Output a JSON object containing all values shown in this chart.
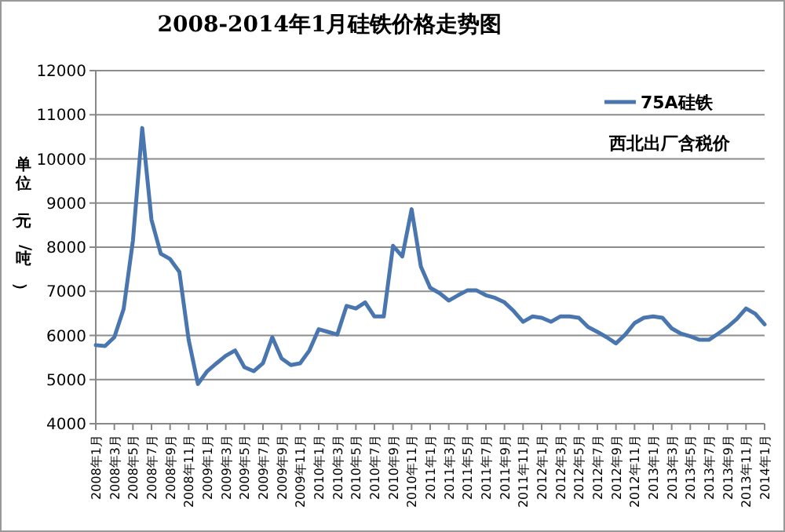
{
  "chart_data": {
    "type": "line",
    "title": "2008-2014年1月硅铁价格走势图",
    "ylabel": "单位（元/吨）",
    "annotations": [
      "西北出厂含税价"
    ],
    "categories": [
      "2008年1月",
      null,
      "2008年3月",
      null,
      "2008年5月",
      null,
      "2008年7月",
      null,
      "2008年9月",
      null,
      "2008年11月",
      null,
      "2009年1月",
      null,
      "2009年3月",
      null,
      "2009年5月",
      null,
      "2009年7月",
      null,
      "2009年9月",
      null,
      "2009年11月",
      null,
      "2010年1月",
      null,
      "2010年3月",
      null,
      "2010年5月",
      null,
      "2010年7月",
      null,
      "2010年9月",
      null,
      "2010年11月",
      null,
      "2011年1月",
      null,
      "2011年3月",
      null,
      "2011年5月",
      null,
      "2011年7月",
      null,
      "2011年9月",
      null,
      "2011年11月",
      null,
      "2012年1月",
      null,
      "2012年3月",
      null,
      "2012年5月",
      null,
      "2012年7月",
      null,
      "2012年9月",
      null,
      "2012年11月",
      null,
      "2013年1月",
      null,
      "2013年3月",
      null,
      "2013年5月",
      null,
      "2013年7月",
      null,
      "2013年9月",
      null,
      "2013年11月",
      null,
      "2014年1月"
    ],
    "series": [
      {
        "name": "75A硅铁",
        "color": "#4a76b0",
        "values": [
          5780,
          5760,
          5960,
          6600,
          8150,
          10700,
          8620,
          7850,
          7730,
          7440,
          5900,
          4900,
          5190,
          5370,
          5540,
          5660,
          5280,
          5190,
          5370,
          5960,
          5480,
          5330,
          5370,
          5660,
          6140,
          6080,
          6020,
          6670,
          6610,
          6750,
          6430,
          6430,
          8030,
          7790,
          8860,
          7560,
          7080,
          6960,
          6790,
          6910,
          7020,
          7020,
          6910,
          6850,
          6750,
          6550,
          6310,
          6430,
          6400,
          6310,
          6430,
          6430,
          6400,
          6190,
          6080,
          5960,
          5820,
          6020,
          6280,
          6400,
          6430,
          6400,
          6160,
          6040,
          5980,
          5900,
          5900,
          6040,
          6190,
          6370,
          6610,
          6490,
          6250
        ]
      }
    ],
    "ylim": [
      4000,
      12000
    ],
    "yticks": [
      4000,
      5000,
      6000,
      7000,
      8000,
      9000,
      10000,
      11000,
      12000
    ],
    "grid": "y",
    "legend": "top right",
    "marker": "none",
    "line_style": "solid"
  }
}
